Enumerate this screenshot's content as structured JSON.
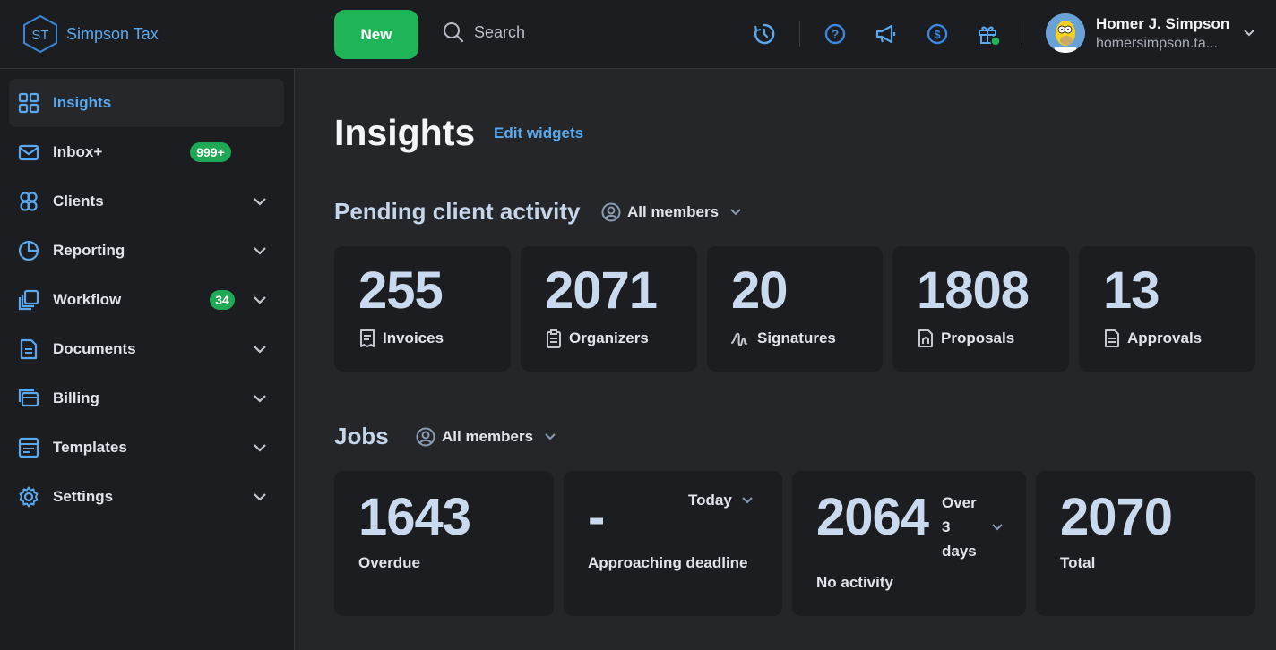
{
  "brand": {
    "initials": "ST",
    "name": "Simpson Tax"
  },
  "header": {
    "new_label": "New",
    "search_label": "Search",
    "icons": [
      "clock-icon",
      "help-icon",
      "megaphone-icon",
      "dollar-icon",
      "gift-icon"
    ],
    "user": {
      "name": "Homer J. Simpson",
      "email": "homersimpson.ta..."
    }
  },
  "sidebar": {
    "items": [
      {
        "label": "Insights",
        "icon": "grid-icon",
        "active": true
      },
      {
        "label": "Inbox+",
        "icon": "mail-icon",
        "badge": "999+"
      },
      {
        "label": "Clients",
        "icon": "clients-icon"
      },
      {
        "label": "Reporting",
        "icon": "pie-chart-icon"
      },
      {
        "label": "Workflow",
        "icon": "workflow-icon",
        "badge": "34"
      },
      {
        "label": "Documents",
        "icon": "document-icon"
      },
      {
        "label": "Billing",
        "icon": "billing-icon"
      },
      {
        "label": "Templates",
        "icon": "template-icon"
      },
      {
        "label": "Settings",
        "icon": "gear-icon"
      }
    ]
  },
  "main": {
    "title": "Insights",
    "edit_label": "Edit widgets",
    "pending": {
      "title": "Pending client activity",
      "filter": "All members",
      "cards": [
        {
          "value": "255",
          "label": "Invoices",
          "icon": "invoice-icon"
        },
        {
          "value": "2071",
          "label": "Organizers",
          "icon": "clipboard-icon"
        },
        {
          "value": "20",
          "label": "Signatures",
          "icon": "signature-icon"
        },
        {
          "value": "1808",
          "label": "Proposals",
          "icon": "proposal-icon"
        },
        {
          "value": "13",
          "label": "Approvals",
          "icon": "approval-icon"
        }
      ]
    },
    "jobs": {
      "title": "Jobs",
      "filter": "All members",
      "cards": [
        {
          "value": "1643",
          "label": "Overdue"
        },
        {
          "value": "-",
          "label": "Approaching deadline",
          "period": "Today"
        },
        {
          "value": "2064",
          "label": "No activity",
          "period_lines": [
            "Over",
            "3",
            "days"
          ]
        },
        {
          "value": "2070",
          "label": "Total"
        }
      ]
    }
  },
  "colors": {
    "accent": "#5aa9ee",
    "green": "#1fb457",
    "card_value": "#c9d9ee"
  }
}
